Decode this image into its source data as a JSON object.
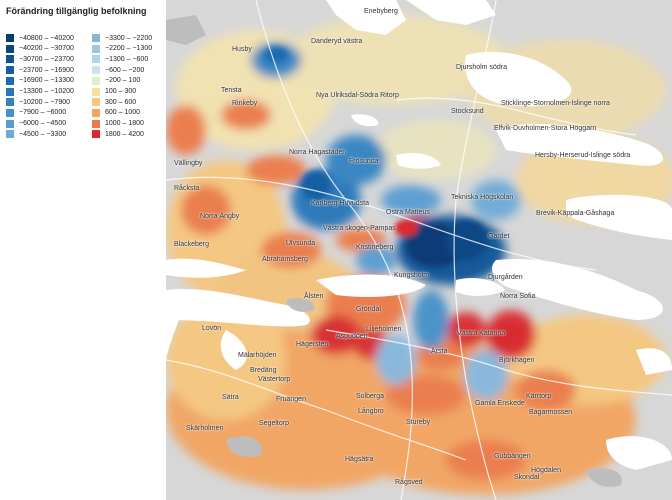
{
  "legend": {
    "title": "Förändring tillgänglig befolkning",
    "items": [
      {
        "label": "−40800 – −40200",
        "color": "#0a3a74"
      },
      {
        "label": "−40200 – −30700",
        "color": "#0c4685"
      },
      {
        "label": "−30700 – −23700",
        "color": "#0f5296"
      },
      {
        "label": "−23700 – −16900",
        "color": "#155ea4"
      },
      {
        "label": "−16900 – −13300",
        "color": "#1c6aaf"
      },
      {
        "label": "−13300 – −10200",
        "color": "#2676b9"
      },
      {
        "label": "−10200 – −7900",
        "color": "#3383c2"
      },
      {
        "label": "−7900 – −6000",
        "color": "#4490ca"
      },
      {
        "label": "−6000 – −4500",
        "color": "#589dd1"
      },
      {
        "label": "−4500 – −3300",
        "color": "#6eaad7"
      },
      {
        "label": "−3300 – −2200",
        "color": "#85b7dd"
      },
      {
        "label": "−2200 – −1300",
        "color": "#9dc6e3"
      },
      {
        "label": "−1300 – −600",
        "color": "#b6d4ea"
      },
      {
        "label": "−600 – −200",
        "color": "#cce2ef"
      },
      {
        "label": "−200 – 100",
        "color": "#e2eecb"
      },
      {
        "label": "100 – 300",
        "color": "#f7dfa0"
      },
      {
        "label": "300 – 600",
        "color": "#f6c77f"
      },
      {
        "label": "600 – 1000",
        "color": "#f3a460"
      },
      {
        "label": "1000 – 1800",
        "color": "#ec7a47"
      },
      {
        "label": "1800 – 4200",
        "color": "#d92b2f"
      }
    ]
  },
  "map": {
    "land_color": "#d7d7d7",
    "water_color": "#ffffff",
    "places": [
      "Enebyberg",
      "Husby",
      "Danderyd västra",
      "Djursholm södra",
      "Tensta",
      "Rinkeby",
      "Nya Ulriksdal-Södra Ritorp",
      "Stocksund",
      "Sticklinge-Stornolmen-Islinge norra",
      "Elfvik-Duvholmen-Stora Höggarn",
      "Vällingby",
      "Norra Hagastaden",
      "Frösunda",
      "Hersby-Herserud-Islinge södra",
      "Råcksta",
      "Karlberg Huvudsta",
      "Tekniska Högskolan",
      "Norra Ängby",
      "Östra Matteus",
      "Brevik-Käppala-Gåshaga",
      "Ulvsunda",
      "Kristineberg",
      "Västra skogen-Pampas",
      "Gärdet",
      "Blackeberg",
      "Abrahamsberg",
      "Kungsholm",
      "Djurgården",
      "Ålsten",
      "Norra Sofia",
      "Lovön",
      "Gröndal",
      "Liljeholmen",
      "Aspudden",
      "Västra Katarina",
      "Hägersten",
      "Mälarhöjden",
      "Årsta",
      "Björkhagen",
      "Bredäng",
      "Västertorp",
      "Fruängen",
      "Solberga",
      "Gamla Enskede",
      "Kärrtorp",
      "Sätra",
      "Långbro",
      "Bagarmossen",
      "Segeltorp",
      "Skärholmen",
      "Stureby",
      "Hägsätra",
      "Gubbängen",
      "Högdalen",
      "Rågsved",
      "Skondal"
    ]
  }
}
